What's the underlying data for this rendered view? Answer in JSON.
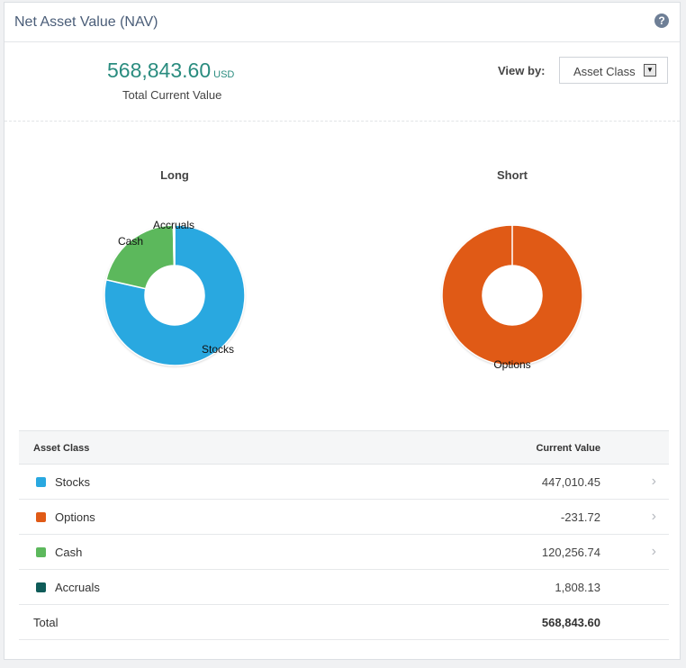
{
  "header": {
    "title": "Net Asset Value (NAV)",
    "help_glyph": "?"
  },
  "summary": {
    "value": "568,843.60",
    "currency": "USD",
    "label": "Total Current Value"
  },
  "view_by": {
    "label": "View by:",
    "selected": "Asset Class"
  },
  "colors": {
    "stocks": "#29a8e0",
    "options": "#e05a16",
    "cash": "#5cb85c",
    "accruals": "#0f5c59"
  },
  "chart_data": [
    {
      "type": "pie",
      "title": "Long",
      "categories": [
        "Stocks",
        "Cash",
        "Accruals"
      ],
      "values": [
        447010.45,
        120256.74,
        1808.13
      ]
    },
    {
      "type": "pie",
      "title": "Short",
      "categories": [
        "Options"
      ],
      "values": [
        231.72
      ]
    }
  ],
  "table": {
    "col_asset": "Asset Class",
    "col_value": "Current Value",
    "rows": [
      {
        "label": "Stocks",
        "value": "447,010.45",
        "color": "#29a8e0",
        "chevron": true
      },
      {
        "label": "Options",
        "value": "-231.72",
        "color": "#e05a16",
        "chevron": true
      },
      {
        "label": "Cash",
        "value": "120,256.74",
        "color": "#5cb85c",
        "chevron": true
      },
      {
        "label": "Accruals",
        "value": "1,808.13",
        "color": "#0f5c59",
        "chevron": false
      }
    ],
    "total_label": "Total",
    "total_value": "568,843.60"
  }
}
